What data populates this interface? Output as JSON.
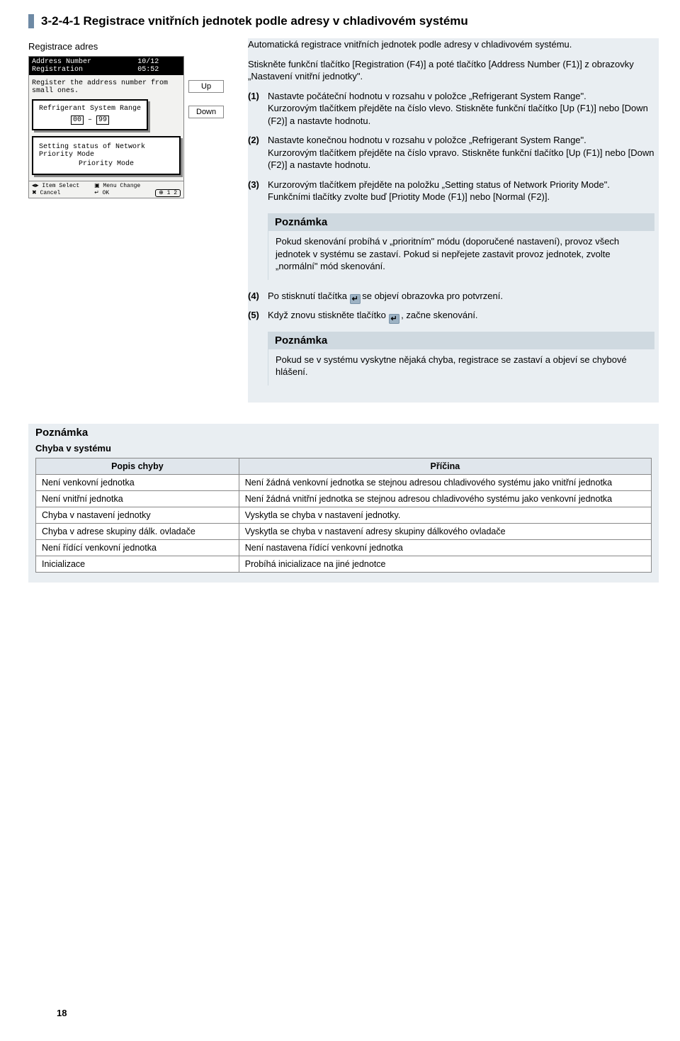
{
  "heading": "3-2-4-1 Registrace vnitřních jednotek podle adresy v chladivovém systému",
  "sub_label": "Registrace adres",
  "side_buttons": {
    "up": "Up",
    "down": "Down"
  },
  "lcd": {
    "title": "Address Number Registration",
    "clock": "10/12 05:52",
    "line1": "Register the address number from small ones.",
    "panel_title": "Refrigerant System Range",
    "num_from": "00",
    "num_to": "99",
    "status_line": "Setting status of Network Priority Mode",
    "mode": "Priority Mode",
    "footer": {
      "item": "Item Select",
      "cancel": "Cancel",
      "menu": "Menu Change",
      "ok": "OK",
      "pg": "1 2"
    }
  },
  "para1": "Automatická registrace vnitřních jednotek podle adresy v chladivovém systému.",
  "para2": "Stiskněte funkční tlačítko [Registration (F4)] a poté tlačítko [Address Number (F1)] z obrazovky „Nastavení vnitřní jednotky\".",
  "steps": {
    "s1": "Nastavte počáteční hodnotu v rozsahu v položce „Refrigerant System Range\".\nKurzorovým tlačítkem přejděte na číslo vlevo. Stiskněte funkční tlačítko [Up (F1)] nebo [Down (F2)] a nastavte hodnotu.",
    "s2": "Nastavte konečnou hodnotu v rozsahu v položce „Refrigerant System Range\".\nKurzorovým tlačítkem přejděte na číslo vpravo. Stiskněte funkční tlačítko [Up (F1)] nebo [Down (F2)] a nastavte hodnotu.",
    "s3": "Kurzorovým tlačítkem přejděte na položku „Setting status of Network Priority Mode\".\nFunkčními tlačítky zvolte buď [Priotity Mode (F1)] nebo [Normal (F2)].",
    "s4a": "Po stisknutí tlačítka ",
    "s4b": " se objeví obrazovka pro potvrzení.",
    "s5a": "Když znovu stiskněte tlačítko ",
    "s5b": " , začne skenování."
  },
  "note1": {
    "title": "Poznámka",
    "body": "Pokud skenování probíhá v „prioritním\" módu (doporučené nastavení), provoz všech jednotek v systému se zastaví. Pokud si nepřejete zastavit provoz jednotek, zvolte „normální\" mód skenování."
  },
  "note2": {
    "title": "Poznámka",
    "body": "Pokud se v systému vyskytne nějaká chyba, registrace se zastaví a objeví se chybové hlášení."
  },
  "bottom_note": {
    "title": "Poznámka",
    "subtitle": "Chyba v systému",
    "th1": "Popis chyby",
    "th2": "Příčina",
    "rows": [
      {
        "c1": "Není venkovní jednotka",
        "c2": "Není žádná venkovní jednotka se stejnou adresou chladivového systému jako vnitřní jednotka"
      },
      {
        "c1": "Není vnitřní jednotka",
        "c2": "Není žádná vnitřní jednotka se stejnou adresou chladivového systému jako venkovní jednotka"
      },
      {
        "c1": "Chyba v nastavení jednotky",
        "c2": "Vyskytla se chyba v nastavení jednotky."
      },
      {
        "c1": "Chyba v adrese skupiny dálk. ovladače",
        "c2": "Vyskytla se chyba v nastavení adresy skupiny dálkového ovladače"
      },
      {
        "c1": "Není řídící venkovní jednotka",
        "c2": "Není nastavena řídící venkovní jednotka"
      },
      {
        "c1": "Inicializace",
        "c2": "Probíhá inicializace na jiné jednotce"
      }
    ]
  },
  "page_number": "18"
}
